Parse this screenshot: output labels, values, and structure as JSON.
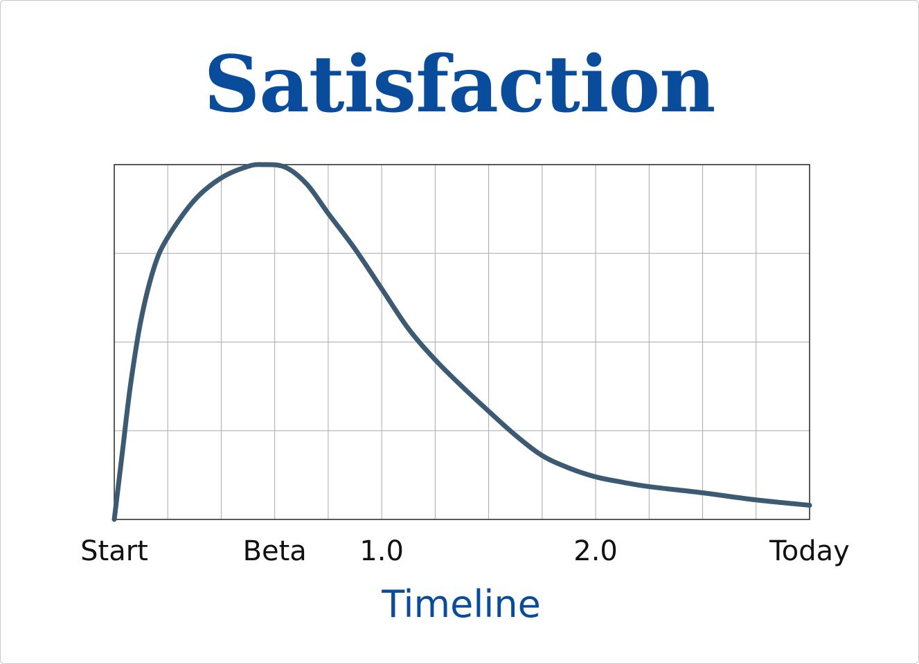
{
  "chart_data": {
    "type": "line",
    "title": "Satisfaction",
    "xlabel": "Timeline",
    "ylabel": "",
    "grid": true,
    "xlim": [
      0,
      13
    ],
    "ylim": [
      0,
      4
    ],
    "x_ticks": [
      {
        "x": 0,
        "label": "Start"
      },
      {
        "x": 3,
        "label": "Beta"
      },
      {
        "x": 5,
        "label": "1.0"
      },
      {
        "x": 9,
        "label": "2.0"
      },
      {
        "x": 13,
        "label": "Today"
      }
    ],
    "x_gridlines": [
      1,
      2,
      3,
      4,
      5,
      6,
      7,
      8,
      9,
      10,
      11,
      12
    ],
    "y_gridlines": [
      1,
      2,
      3
    ],
    "series": [
      {
        "color": "#3d5a73",
        "points": [
          [
            0.0,
            0.0
          ],
          [
            0.15,
            0.75
          ],
          [
            0.3,
            1.5
          ],
          [
            0.5,
            2.25
          ],
          [
            0.75,
            2.85
          ],
          [
            1.0,
            3.18
          ],
          [
            1.5,
            3.6
          ],
          [
            2.0,
            3.85
          ],
          [
            2.5,
            3.98
          ],
          [
            2.8,
            4.0
          ],
          [
            3.2,
            3.97
          ],
          [
            3.6,
            3.78
          ],
          [
            4.0,
            3.45
          ],
          [
            4.5,
            3.05
          ],
          [
            5.0,
            2.6
          ],
          [
            5.5,
            2.15
          ],
          [
            6.0,
            1.8
          ],
          [
            6.5,
            1.5
          ],
          [
            7.0,
            1.22
          ],
          [
            7.5,
            0.95
          ],
          [
            8.0,
            0.72
          ],
          [
            8.5,
            0.58
          ],
          [
            9.0,
            0.48
          ],
          [
            9.5,
            0.42
          ],
          [
            10.0,
            0.37
          ],
          [
            11.0,
            0.3
          ],
          [
            12.0,
            0.22
          ],
          [
            13.0,
            0.16
          ]
        ]
      }
    ]
  },
  "colors": {
    "title": "#0a4c9c",
    "line": "#3d5a73",
    "grid": "#a8a8a8",
    "border": "#222222"
  }
}
